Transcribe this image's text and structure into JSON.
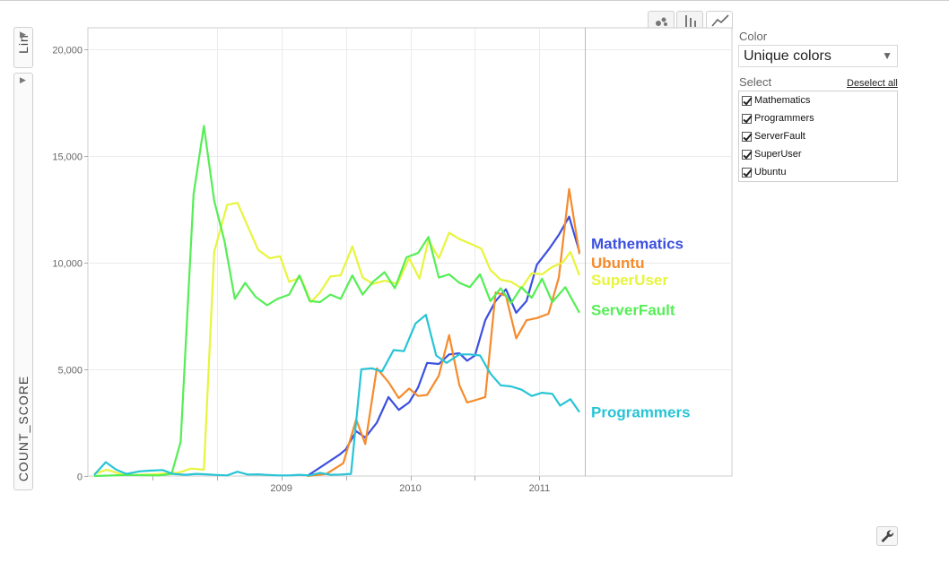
{
  "controls": {
    "y_axis_scale_label": "Lin",
    "second_toggle_label": "",
    "y_axis_metric": "COUNT_SCORE",
    "chart_types": [
      "bubble-chart-icon",
      "bar-chart-icon",
      "line-chart-icon"
    ],
    "active_chart_type": "line-chart-icon"
  },
  "panel": {
    "color_label": "Color",
    "color_value": "Unique colors",
    "select_label": "Select",
    "deselect_all": "Deselect all",
    "items": [
      {
        "label": "Mathematics",
        "checked": true
      },
      {
        "label": "Programmers",
        "checked": true
      },
      {
        "label": "ServerFault",
        "checked": true
      },
      {
        "label": "SuperUser",
        "checked": true
      },
      {
        "label": "Ubuntu",
        "checked": true
      }
    ]
  },
  "settings_icon": "wrench-icon",
  "chart_data": {
    "type": "line",
    "ylim": [
      0,
      21000
    ],
    "xlim": [
      2008.05,
      2012.0
    ],
    "xticks": [
      {
        "value": 2009,
        "label": "2009"
      },
      {
        "value": 2010,
        "label": "2010"
      },
      {
        "value": 2011,
        "label": "2011"
      }
    ],
    "yticks": [
      {
        "value": 0,
        "label": "0"
      },
      {
        "value": 5000,
        "label": "5,000"
      },
      {
        "value": 10000,
        "label": "10,000"
      },
      {
        "value": 15000,
        "label": "15,000"
      },
      {
        "value": 20000,
        "label": "20,000"
      }
    ],
    "grid": true,
    "series": [
      {
        "name": "Mathematics",
        "color": "#3b4fe0",
        "label_y": 10900,
        "points": [
          [
            2009.7,
            0
          ],
          [
            2009.95,
            1000
          ],
          [
            2010.0,
            1250
          ],
          [
            2010.08,
            2100
          ],
          [
            2010.15,
            1800
          ],
          [
            2010.24,
            2500
          ],
          [
            2010.33,
            3700
          ],
          [
            2010.41,
            3100
          ],
          [
            2010.49,
            3450
          ],
          [
            2010.56,
            4150
          ],
          [
            2010.63,
            5300
          ],
          [
            2010.72,
            5250
          ],
          [
            2010.8,
            5700
          ],
          [
            2010.88,
            5750
          ],
          [
            2010.94,
            5400
          ],
          [
            2011.0,
            5650
          ],
          [
            2011.08,
            7300
          ],
          [
            2011.16,
            8200
          ],
          [
            2011.24,
            8750
          ],
          [
            2011.32,
            7650
          ],
          [
            2011.4,
            8200
          ],
          [
            2011.48,
            9900
          ],
          [
            2011.57,
            10600
          ],
          [
            2011.65,
            11300
          ],
          [
            2011.73,
            12150
          ],
          [
            2011.81,
            10500
          ]
        ]
      },
      {
        "name": "Ubuntu",
        "color": "#f58b2c",
        "label_y": 10000,
        "points": [
          [
            2009.7,
            0
          ],
          [
            2009.85,
            100
          ],
          [
            2009.98,
            600
          ],
          [
            2010.08,
            2650
          ],
          [
            2010.15,
            1500
          ],
          [
            2010.24,
            5050
          ],
          [
            2010.33,
            4400
          ],
          [
            2010.41,
            3650
          ],
          [
            2010.49,
            4100
          ],
          [
            2010.56,
            3750
          ],
          [
            2010.63,
            3800
          ],
          [
            2010.72,
            4700
          ],
          [
            2010.8,
            6600
          ],
          [
            2010.88,
            4250
          ],
          [
            2010.94,
            3450
          ],
          [
            2011.0,
            3550
          ],
          [
            2011.08,
            3700
          ],
          [
            2011.16,
            8600
          ],
          [
            2011.24,
            8450
          ],
          [
            2011.32,
            6450
          ],
          [
            2011.4,
            7300
          ],
          [
            2011.48,
            7400
          ],
          [
            2011.57,
            7600
          ],
          [
            2011.65,
            9300
          ],
          [
            2011.73,
            13450
          ],
          [
            2011.81,
            10400
          ]
        ]
      },
      {
        "name": "SuperUser",
        "color": "#e7f53c",
        "label_y": 9200,
        "points": [
          [
            2008.05,
            100
          ],
          [
            2008.15,
            300
          ],
          [
            2008.25,
            100
          ],
          [
            2008.35,
            50
          ],
          [
            2008.5,
            80
          ],
          [
            2008.7,
            150
          ],
          [
            2008.8,
            350
          ],
          [
            2008.9,
            300
          ],
          [
            2008.98,
            10500
          ],
          [
            2009.08,
            12700
          ],
          [
            2009.16,
            12800
          ],
          [
            2009.24,
            11700
          ],
          [
            2009.32,
            10600
          ],
          [
            2009.41,
            10200
          ],
          [
            2009.49,
            10300
          ],
          [
            2009.56,
            9100
          ],
          [
            2009.65,
            9300
          ],
          [
            2009.73,
            8150
          ],
          [
            2009.8,
            8600
          ],
          [
            2009.88,
            9350
          ],
          [
            2009.96,
            9400
          ],
          [
            2010.05,
            10750
          ],
          [
            2010.13,
            9300
          ],
          [
            2010.21,
            9000
          ],
          [
            2010.3,
            9150
          ],
          [
            2010.4,
            9000
          ],
          [
            2010.49,
            10200
          ],
          [
            2010.57,
            9250
          ],
          [
            2010.64,
            11050
          ],
          [
            2010.72,
            10200
          ],
          [
            2010.8,
            11400
          ],
          [
            2010.88,
            11100
          ],
          [
            2010.96,
            10900
          ],
          [
            2011.05,
            10650
          ],
          [
            2011.12,
            9650
          ],
          [
            2011.2,
            9200
          ],
          [
            2011.28,
            9100
          ],
          [
            2011.36,
            8800
          ],
          [
            2011.44,
            9500
          ],
          [
            2011.52,
            9450
          ],
          [
            2011.6,
            9800
          ],
          [
            2011.68,
            10000
          ],
          [
            2011.74,
            10500
          ],
          [
            2011.81,
            9400
          ]
        ]
      },
      {
        "name": "ServerFault",
        "color": "#55ee55",
        "label_y": 7800,
        "points": [
          [
            2008.05,
            0
          ],
          [
            2008.3,
            50
          ],
          [
            2008.55,
            30
          ],
          [
            2008.65,
            100
          ],
          [
            2008.72,
            1600
          ],
          [
            2008.82,
            13200
          ],
          [
            2008.9,
            16400
          ],
          [
            2008.98,
            12900
          ],
          [
            2009.06,
            11000
          ],
          [
            2009.14,
            8300
          ],
          [
            2009.22,
            9050
          ],
          [
            2009.3,
            8400
          ],
          [
            2009.39,
            8000
          ],
          [
            2009.47,
            8300
          ],
          [
            2009.56,
            8500
          ],
          [
            2009.64,
            9400
          ],
          [
            2009.72,
            8200
          ],
          [
            2009.8,
            8150
          ],
          [
            2009.88,
            8500
          ],
          [
            2009.96,
            8300
          ],
          [
            2010.05,
            9400
          ],
          [
            2010.13,
            8500
          ],
          [
            2010.21,
            9100
          ],
          [
            2010.3,
            9550
          ],
          [
            2010.38,
            8800
          ],
          [
            2010.47,
            10250
          ],
          [
            2010.56,
            10450
          ],
          [
            2010.64,
            11200
          ],
          [
            2010.72,
            9300
          ],
          [
            2010.8,
            9450
          ],
          [
            2010.88,
            9050
          ],
          [
            2010.96,
            8850
          ],
          [
            2011.04,
            9450
          ],
          [
            2011.12,
            8200
          ],
          [
            2011.2,
            8800
          ],
          [
            2011.28,
            8100
          ],
          [
            2011.36,
            8850
          ],
          [
            2011.44,
            8350
          ],
          [
            2011.52,
            9250
          ],
          [
            2011.6,
            8150
          ],
          [
            2011.7,
            8850
          ],
          [
            2011.81,
            7650
          ]
        ]
      },
      {
        "name": "Programmers",
        "color": "#27c4d6",
        "label_y": 3000,
        "points": [
          [
            2008.05,
            50
          ],
          [
            2008.14,
            650
          ],
          [
            2008.22,
            300
          ],
          [
            2008.3,
            100
          ],
          [
            2008.4,
            220
          ],
          [
            2008.48,
            250
          ],
          [
            2008.58,
            280
          ],
          [
            2008.66,
            100
          ],
          [
            2008.76,
            60
          ],
          [
            2008.84,
            100
          ],
          [
            2008.92,
            80
          ],
          [
            2009.0,
            50
          ],
          [
            2009.08,
            30
          ],
          [
            2009.16,
            200
          ],
          [
            2009.24,
            70
          ],
          [
            2009.32,
            80
          ],
          [
            2009.4,
            50
          ],
          [
            2009.48,
            30
          ],
          [
            2009.56,
            30
          ],
          [
            2009.64,
            60
          ],
          [
            2009.72,
            30
          ],
          [
            2009.8,
            150
          ],
          [
            2009.88,
            60
          ],
          [
            2009.96,
            70
          ],
          [
            2010.04,
            100
          ],
          [
            2010.12,
            5000
          ],
          [
            2010.2,
            5050
          ],
          [
            2010.28,
            4900
          ],
          [
            2010.37,
            5900
          ],
          [
            2010.45,
            5850
          ],
          [
            2010.54,
            7150
          ],
          [
            2010.62,
            7550
          ],
          [
            2010.7,
            5650
          ],
          [
            2010.78,
            5300
          ],
          [
            2010.88,
            5700
          ],
          [
            2010.96,
            5700
          ],
          [
            2011.04,
            5650
          ],
          [
            2011.12,
            4800
          ],
          [
            2011.2,
            4250
          ],
          [
            2011.28,
            4200
          ],
          [
            2011.36,
            4050
          ],
          [
            2011.44,
            3750
          ],
          [
            2011.52,
            3900
          ],
          [
            2011.6,
            3850
          ],
          [
            2011.66,
            3300
          ],
          [
            2011.74,
            3600
          ],
          [
            2011.81,
            3000
          ]
        ]
      }
    ]
  }
}
